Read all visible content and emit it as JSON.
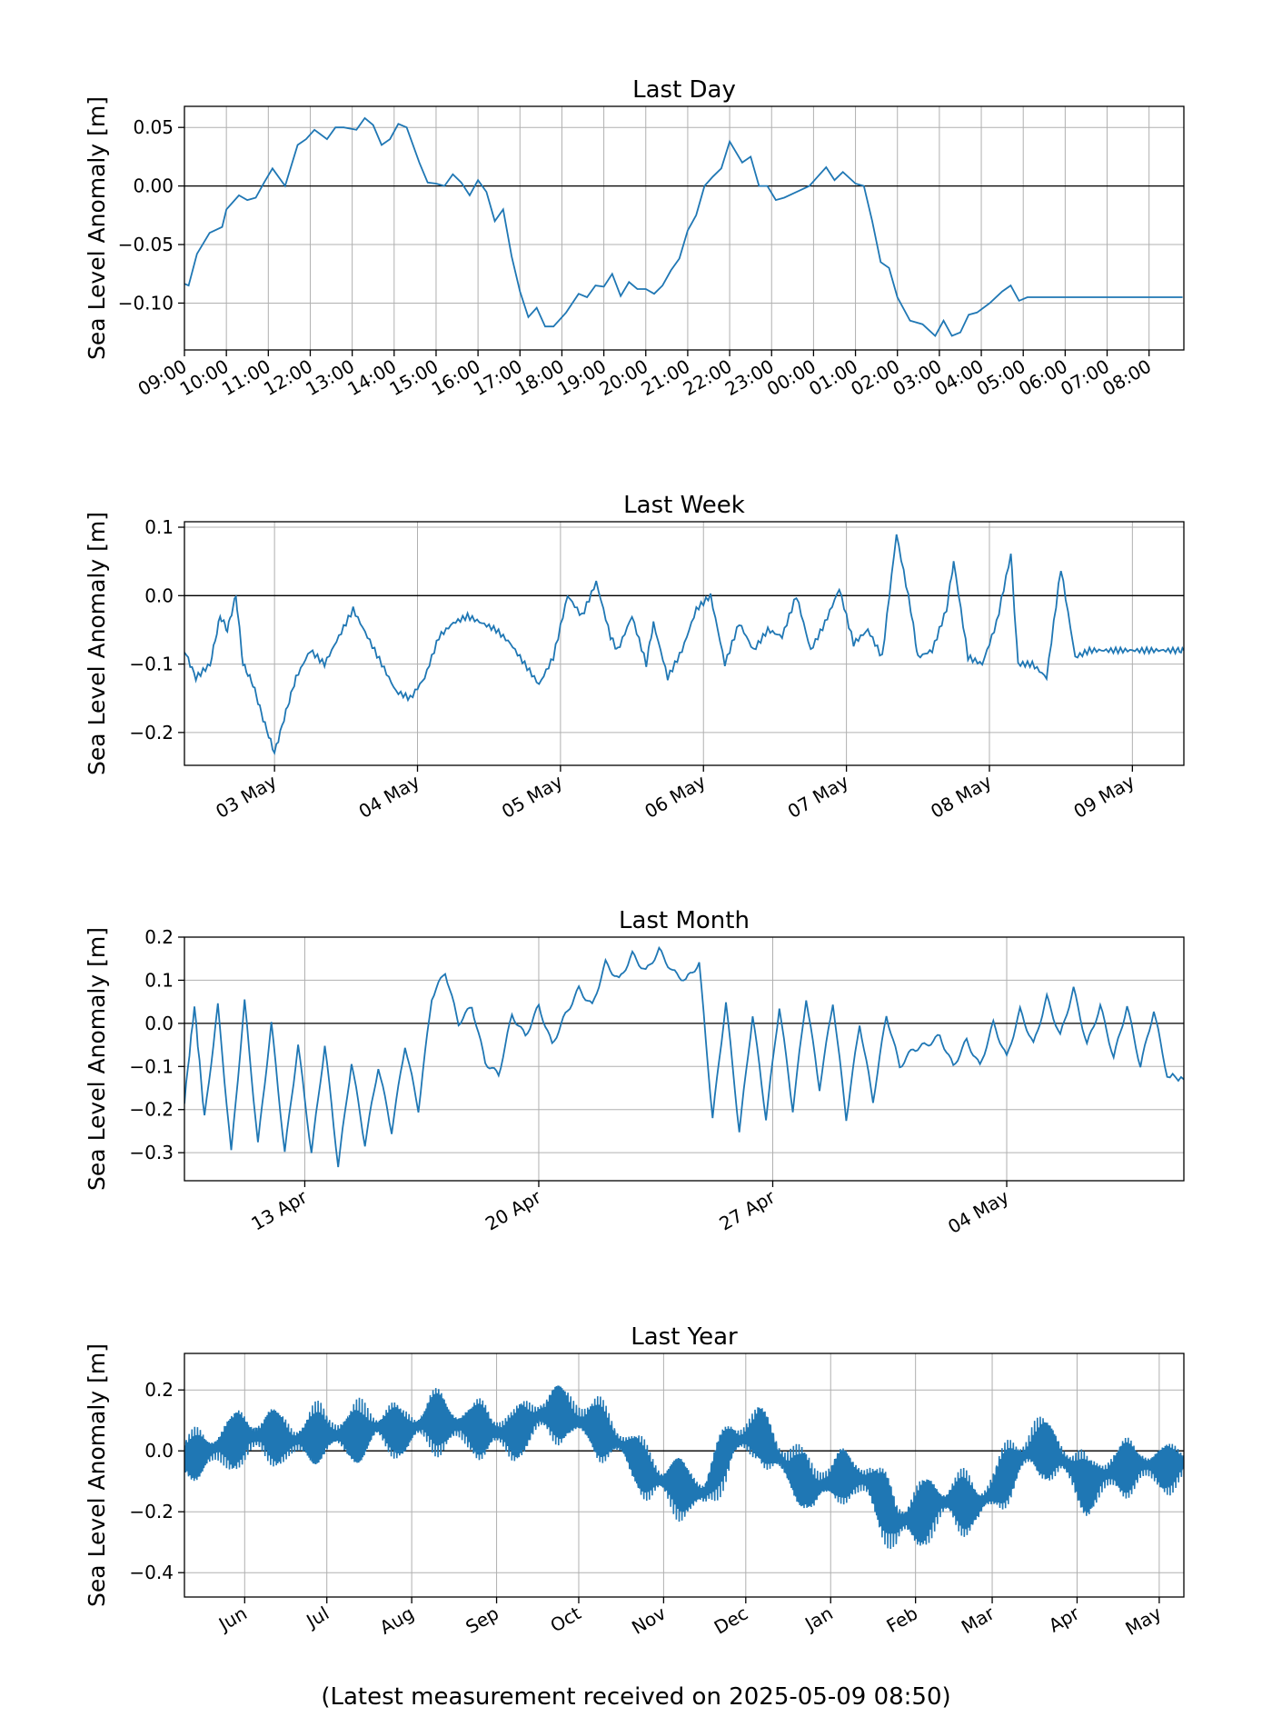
{
  "footer": "(Latest measurement received on 2025-05-09 08:50)",
  "line_color": "#1f77b4",
  "chart_data": [
    {
      "type": "line",
      "title": "Last Day",
      "ylabel": "Sea Level Anomaly [m]",
      "xlabel": "",
      "xlim": [
        0,
        23.83
      ],
      "ylim": [
        -0.14,
        0.068
      ],
      "yticks": [
        0.05,
        0.0,
        -0.05,
        -0.1
      ],
      "ytick_labels": [
        "0.05",
        "0.00",
        "−0.05",
        "−0.10"
      ],
      "xticks": [
        0,
        1,
        2,
        3,
        4,
        5,
        6,
        7,
        8,
        9,
        10,
        11,
        12,
        13,
        14,
        15,
        16,
        17,
        18,
        19,
        20,
        21,
        22,
        23
      ],
      "xtick_labels": [
        "09:00",
        "10:00",
        "11:00",
        "12:00",
        "13:00",
        "14:00",
        "15:00",
        "16:00",
        "17:00",
        "18:00",
        "19:00",
        "20:00",
        "21:00",
        "22:00",
        "23:00",
        "00:00",
        "01:00",
        "02:00",
        "03:00",
        "04:00",
        "05:00",
        "06:00",
        "07:00",
        "08:00"
      ],
      "xtick_rotation": 30,
      "zero_line": true,
      "grid": true,
      "x": [
        -0.1,
        0.1,
        0.3,
        0.6,
        0.9,
        1.0,
        1.3,
        1.5,
        1.7,
        1.9,
        2.1,
        2.4,
        2.7,
        2.9,
        3.1,
        3.4,
        3.6,
        3.8,
        4.1,
        4.3,
        4.5,
        4.7,
        4.9,
        5.1,
        5.3,
        5.6,
        5.8,
        6.0,
        6.2,
        6.4,
        6.6,
        6.8,
        7.0,
        7.2,
        7.4,
        7.6,
        7.8,
        8.0,
        8.2,
        8.4,
        8.6,
        8.8,
        9.1,
        9.4,
        9.6,
        9.8,
        10.0,
        10.2,
        10.4,
        10.6,
        10.8,
        11.0,
        11.2,
        11.4,
        11.6,
        11.8,
        12.0,
        12.2,
        12.4,
        12.6,
        12.8,
        13.0,
        13.3,
        13.5,
        13.7,
        13.9,
        14.1,
        14.3,
        14.6,
        14.9,
        15.1,
        15.3,
        15.5,
        15.7,
        16.0,
        16.2,
        16.4,
        16.6,
        16.8,
        17.0,
        17.3,
        17.6,
        17.9,
        18.1,
        18.3,
        18.5,
        18.7,
        18.9,
        19.2,
        19.5,
        19.7,
        19.9,
        20.1,
        20.3,
        20.5,
        20.7,
        20.9,
        21.2,
        21.4,
        21.6,
        21.8,
        22.0,
        22.2,
        22.5,
        22.7,
        22.9,
        23.1,
        23.3,
        23.6,
        23.8
      ],
      "y": [
        -0.082,
        -0.085,
        -0.058,
        -0.04,
        -0.035,
        -0.02,
        -0.008,
        -0.012,
        -0.01,
        0.003,
        0.015,
        0.0,
        0.035,
        0.04,
        0.048,
        0.04,
        0.05,
        0.05,
        0.048,
        0.058,
        0.052,
        0.035,
        0.04,
        0.053,
        0.05,
        0.02,
        0.003,
        0.002,
        0.0,
        0.01,
        0.003,
        -0.008,
        0.005,
        -0.005,
        -0.03,
        -0.02,
        -0.06,
        -0.09,
        -0.112,
        -0.104,
        -0.12,
        -0.12,
        -0.108,
        -0.092,
        -0.095,
        -0.085,
        -0.086,
        -0.075,
        -0.094,
        -0.082,
        -0.088,
        -0.088,
        -0.092,
        -0.085,
        -0.072,
        -0.062,
        -0.038,
        -0.025,
        0.0,
        0.008,
        0.015,
        0.038,
        0.02,
        0.025,
        0.0,
        0.0,
        -0.012,
        -0.01,
        -0.005,
        0.0,
        0.008,
        0.016,
        0.005,
        0.012,
        0.002,
        0.0,
        -0.03,
        -0.065,
        -0.07,
        -0.095,
        -0.115,
        -0.118,
        -0.128,
        -0.115,
        -0.128,
        -0.125,
        -0.11,
        -0.108,
        -0.1,
        -0.09,
        -0.085,
        -0.098,
        -0.095,
        -0.095,
        -0.095,
        -0.095,
        -0.095,
        -0.095,
        -0.095,
        -0.095,
        -0.095,
        -0.095,
        -0.095,
        -0.095,
        -0.095,
        -0.095,
        -0.095,
        -0.095,
        -0.095,
        -0.095
      ]
    },
    {
      "type": "line",
      "title": "Last Week",
      "ylabel": "Sea Level Anomaly [m]",
      "xlabel": "",
      "xlim": [
        -0.63,
        6.36
      ],
      "ylim": [
        -0.248,
        0.108
      ],
      "yticks": [
        0.1,
        0.0,
        -0.1,
        -0.2
      ],
      "ytick_labels": [
        "0.1",
        "0.0",
        "−0.1",
        "−0.2"
      ],
      "xticks": [
        0,
        1,
        2,
        3,
        4,
        5,
        6
      ],
      "xtick_labels": [
        "03 May",
        "04 May",
        "05 May",
        "06 May",
        "07 May",
        "08 May",
        "09 May"
      ],
      "xtick_rotation": 30,
      "zero_line": true,
      "grid": true,
      "x": [
        -0.63,
        -0.55,
        -0.45,
        -0.38,
        -0.33,
        -0.27,
        -0.22,
        -0.15,
        -0.08,
        0.0,
        0.08,
        0.15,
        0.25,
        0.35,
        0.45,
        0.55,
        0.65,
        0.75,
        0.85,
        0.95,
        1.05,
        1.15,
        1.25,
        1.35,
        1.45,
        1.55,
        1.65,
        1.75,
        1.85,
        1.95,
        2.05,
        2.15,
        2.25,
        2.35,
        2.4,
        2.5,
        2.6,
        2.65,
        2.75,
        2.85,
        2.95,
        3.05,
        3.15,
        3.25,
        3.35,
        3.45,
        3.55,
        3.65,
        3.75,
        3.85,
        3.95,
        4.05,
        4.15,
        4.25,
        4.35,
        4.45,
        4.5,
        4.6,
        4.7,
        4.75,
        4.85,
        4.95,
        5.05,
        5.15,
        5.2,
        5.3,
        5.4,
        5.5,
        5.6,
        5.7,
        5.8,
        5.9,
        6.0,
        6.1,
        6.2,
        6.3,
        6.36
      ],
      "y": [
        -0.08,
        -0.12,
        -0.1,
        -0.03,
        -0.05,
        0.0,
        -0.1,
        -0.13,
        -0.18,
        -0.23,
        -0.17,
        -0.12,
        -0.08,
        -0.1,
        -0.06,
        -0.02,
        -0.06,
        -0.1,
        -0.14,
        -0.15,
        -0.12,
        -0.06,
        -0.04,
        -0.03,
        -0.04,
        -0.05,
        -0.07,
        -0.1,
        -0.13,
        -0.09,
        0.0,
        -0.03,
        0.02,
        -0.06,
        -0.08,
        -0.03,
        -0.1,
        -0.04,
        -0.12,
        -0.08,
        -0.02,
        0.0,
        -0.1,
        -0.04,
        -0.08,
        -0.05,
        -0.06,
        0.0,
        -0.08,
        -0.04,
        0.01,
        -0.07,
        -0.05,
        -0.09,
        0.09,
        -0.02,
        -0.09,
        -0.08,
        -0.02,
        0.05,
        -0.09,
        -0.1,
        -0.04,
        0.06,
        -0.1,
        -0.1,
        -0.12,
        0.04,
        -0.09,
        -0.08,
        -0.08,
        -0.08,
        -0.08,
        -0.08,
        -0.08,
        -0.08,
        -0.08
      ]
    },
    {
      "type": "line",
      "title": "Last Month",
      "ylabel": "Sea Level Anomaly [m]",
      "xlabel": "",
      "xlim": [
        -3.6,
        26.3
      ],
      "ylim": [
        -0.365,
        0.2
      ],
      "yticks": [
        0.2,
        0.1,
        0.0,
        -0.1,
        -0.2,
        -0.3
      ],
      "ytick_labels": [
        "0.2",
        "0.1",
        "0.0",
        "−0.1",
        "−0.2",
        "−0.3"
      ],
      "xticks": [
        0,
        7,
        14,
        21
      ],
      "xtick_labels": [
        "13 Apr",
        "20 Apr",
        "27 Apr",
        "04 May"
      ],
      "xtick_rotation": 30,
      "zero_line": true,
      "grid": true,
      "x": [
        -3.6,
        -3.3,
        -3.0,
        -2.6,
        -2.2,
        -1.8,
        -1.4,
        -1.0,
        -0.6,
        -0.2,
        0.2,
        0.6,
        1.0,
        1.4,
        1.8,
        2.2,
        2.6,
        3.0,
        3.4,
        3.8,
        4.2,
        4.6,
        5.0,
        5.4,
        5.8,
        6.2,
        6.6,
        7.0,
        7.4,
        7.8,
        8.2,
        8.6,
        9.0,
        9.4,
        9.8,
        10.2,
        10.6,
        11.0,
        11.4,
        11.8,
        12.2,
        12.6,
        13.0,
        13.4,
        13.8,
        14.2,
        14.6,
        15.0,
        15.4,
        15.8,
        16.2,
        16.6,
        17.0,
        17.4,
        17.8,
        18.2,
        18.6,
        19.0,
        19.4,
        19.8,
        20.2,
        20.6,
        21.0,
        21.4,
        21.8,
        22.2,
        22.6,
        23.0,
        23.4,
        23.8,
        24.2,
        24.6,
        25.0,
        25.4,
        25.8,
        26.3
      ],
      "y": [
        -0.18,
        0.04,
        -0.22,
        0.04,
        -0.3,
        0.05,
        -0.28,
        0.0,
        -0.3,
        -0.05,
        -0.3,
        -0.05,
        -0.33,
        -0.09,
        -0.28,
        -0.1,
        -0.25,
        -0.05,
        -0.2,
        0.06,
        0.12,
        0.0,
        0.04,
        -0.09,
        -0.12,
        0.02,
        -0.03,
        0.04,
        -0.05,
        0.02,
        0.08,
        0.04,
        0.14,
        0.1,
        0.16,
        0.12,
        0.17,
        0.12,
        0.1,
        0.14,
        -0.22,
        0.05,
        -0.25,
        0.02,
        -0.22,
        0.04,
        -0.2,
        0.06,
        -0.15,
        0.05,
        -0.22,
        0.0,
        -0.18,
        0.02,
        -0.1,
        -0.06,
        -0.05,
        -0.03,
        -0.1,
        -0.04,
        -0.1,
        0.0,
        -0.08,
        0.03,
        -0.05,
        0.06,
        -0.03,
        0.08,
        -0.05,
        0.04,
        -0.08,
        0.04,
        -0.1,
        0.03,
        -0.12,
        -0.13
      ]
    },
    {
      "type": "line",
      "title": "Last Year",
      "ylabel": "Sea Level Anomaly [m]",
      "xlabel": "",
      "xlim": [
        0,
        365
      ],
      "ylim": [
        -0.48,
        0.32
      ],
      "yticks": [
        0.2,
        0.0,
        -0.2,
        -0.4
      ],
      "ytick_labels": [
        "0.2",
        "0.0",
        "−0.2",
        "−0.4"
      ],
      "xticks": [
        22,
        52,
        83,
        114,
        144,
        175,
        205,
        236,
        267,
        295,
        326,
        356
      ],
      "xtick_labels": [
        "Jun",
        "Jul",
        "Aug",
        "Sep",
        "Oct",
        "Nov",
        "Dec",
        "Jan",
        "Feb",
        "Mar",
        "Apr",
        "May"
      ],
      "xtick_rotation": 30,
      "zero_line": true,
      "grid": true,
      "x": [
        0,
        10,
        20,
        30,
        40,
        50,
        60,
        70,
        80,
        90,
        100,
        110,
        120,
        130,
        140,
        150,
        160,
        170,
        180,
        190,
        200,
        210,
        220,
        230,
        240,
        250,
        260,
        270,
        280,
        290,
        300,
        310,
        320,
        330,
        340,
        350,
        360,
        365
      ],
      "y": [
        -0.02,
        0.0,
        0.04,
        0.05,
        0.03,
        0.06,
        0.05,
        0.08,
        0.06,
        0.1,
        0.08,
        0.07,
        0.05,
        0.12,
        0.12,
        0.08,
        0.02,
        -0.08,
        -0.12,
        -0.14,
        0.03,
        0.06,
        -0.05,
        -0.12,
        -0.08,
        -0.1,
        -0.24,
        -0.2,
        -0.16,
        -0.18,
        -0.08,
        0.02,
        -0.02,
        -0.12,
        -0.06,
        -0.05,
        -0.06,
        -0.04
      ],
      "amplitude": [
        0.08,
        0.09,
        0.1,
        0.1,
        0.09,
        0.1,
        0.1,
        0.1,
        0.09,
        0.1,
        0.1,
        0.1,
        0.09,
        0.1,
        0.1,
        0.1,
        0.09,
        0.1,
        0.1,
        0.1,
        0.09,
        0.1,
        0.1,
        0.1,
        0.09,
        0.1,
        0.12,
        0.12,
        0.1,
        0.1,
        0.1,
        0.11,
        0.1,
        0.1,
        0.1,
        0.09,
        0.08,
        0.08
      ]
    }
  ]
}
